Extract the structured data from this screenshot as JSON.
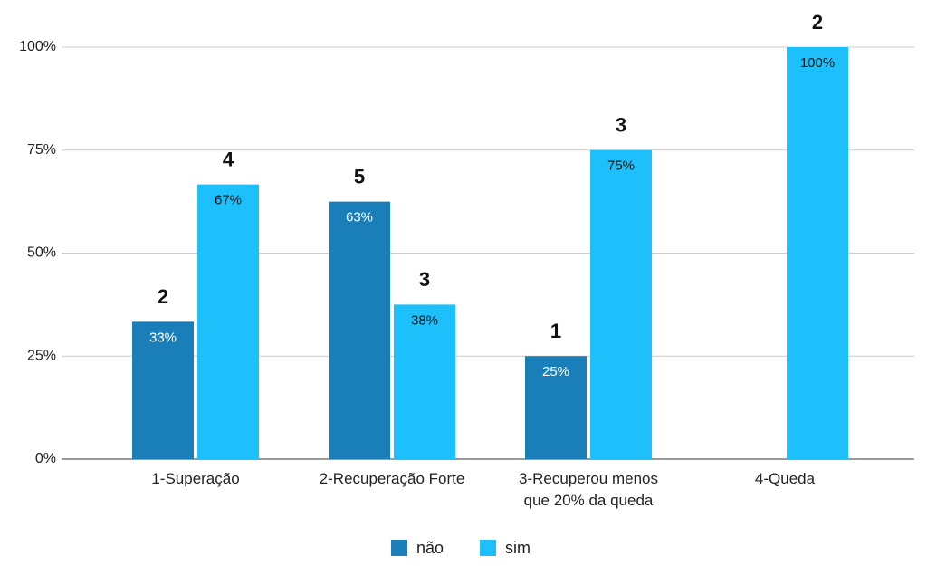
{
  "chart_data": {
    "type": "bar",
    "categories": [
      "1-Superação",
      "2-Recuperação Forte",
      "3-Recuperou menos\nque 20% da queda",
      "4-Queda"
    ],
    "series": [
      {
        "name": "não",
        "color": "#1a7fb8",
        "values": [
          33.33,
          62.5,
          25,
          null
        ],
        "value_labels": [
          "33%",
          "63%",
          "25%",
          null
        ],
        "counts": [
          2,
          5,
          1,
          null
        ]
      },
      {
        "name": "sim",
        "color": "#1ec0fb",
        "values": [
          66.67,
          37.5,
          75,
          100
        ],
        "value_labels": [
          "67%",
          "38%",
          "75%",
          "100%"
        ],
        "counts": [
          4,
          3,
          3,
          2
        ]
      }
    ],
    "ylim": [
      0,
      100
    ],
    "yticks": [
      {
        "value": 0,
        "label": "0%"
      },
      {
        "value": 25,
        "label": "25%"
      },
      {
        "value": 50,
        "label": "50%"
      },
      {
        "value": 75,
        "label": "75%"
      },
      {
        "value": 100,
        "label": "100%"
      }
    ],
    "grid": true,
    "legend": "bottom"
  }
}
